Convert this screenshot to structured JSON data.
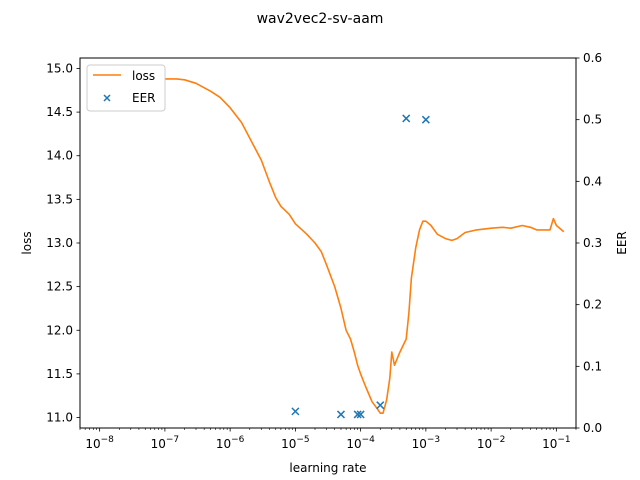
{
  "chart_data": {
    "type": "line",
    "title": "wav2vec2-sv-aam",
    "xlabel": "learning rate",
    "ylabel": "loss",
    "y2label": "EER",
    "xscale": "log",
    "xlim": [
      5e-09,
      0.2
    ],
    "ylim": [
      10.88,
      15.12
    ],
    "y2lim": [
      0.0,
      0.6
    ],
    "x_ticks": [
      {
        "value": 1e-08,
        "base": "10",
        "exp": "−8"
      },
      {
        "value": 1e-07,
        "base": "10",
        "exp": "−7"
      },
      {
        "value": 1e-06,
        "base": "10",
        "exp": "−6"
      },
      {
        "value": 1e-05,
        "base": "10",
        "exp": "−5"
      },
      {
        "value": 0.0001,
        "base": "10",
        "exp": "−4"
      },
      {
        "value": 0.001,
        "base": "10",
        "exp": "−3"
      },
      {
        "value": 0.01,
        "base": "10",
        "exp": "−2"
      },
      {
        "value": 0.1,
        "base": "10",
        "exp": "−1"
      }
    ],
    "y_ticks": [
      {
        "value": 11.0,
        "label": "11.0"
      },
      {
        "value": 11.5,
        "label": "11.5"
      },
      {
        "value": 12.0,
        "label": "12.0"
      },
      {
        "value": 12.5,
        "label": "12.5"
      },
      {
        "value": 13.0,
        "label": "13.0"
      },
      {
        "value": 13.5,
        "label": "13.5"
      },
      {
        "value": 14.0,
        "label": "14.0"
      },
      {
        "value": 14.5,
        "label": "14.5"
      },
      {
        "value": 15.0,
        "label": "15.0"
      }
    ],
    "y2_ticks": [
      {
        "value": 0.0,
        "label": "0.0"
      },
      {
        "value": 0.1,
        "label": "0.1"
      },
      {
        "value": 0.2,
        "label": "0.2"
      },
      {
        "value": 0.3,
        "label": "0.3"
      },
      {
        "value": 0.4,
        "label": "0.4"
      },
      {
        "value": 0.5,
        "label": "0.5"
      },
      {
        "value": 0.6,
        "label": "0.6"
      }
    ],
    "legend_position": "top-left",
    "series": [
      {
        "name": "loss",
        "kind": "line",
        "axis": "left",
        "color": "#ff7f0e",
        "points": [
          [
            1e-07,
            14.88
          ],
          [
            1.5e-07,
            14.88
          ],
          [
            2e-07,
            14.87
          ],
          [
            3e-07,
            14.83
          ],
          [
            5e-07,
            14.74
          ],
          [
            7e-07,
            14.67
          ],
          [
            1e-06,
            14.55
          ],
          [
            1.5e-06,
            14.38
          ],
          [
            2e-06,
            14.2
          ],
          [
            3e-06,
            13.95
          ],
          [
            4e-06,
            13.7
          ],
          [
            5e-06,
            13.52
          ],
          [
            6e-06,
            13.42
          ],
          [
            8e-06,
            13.33
          ],
          [
            1e-05,
            13.22
          ],
          [
            1.5e-05,
            13.1
          ],
          [
            2e-05,
            13.0
          ],
          [
            2.5e-05,
            12.9
          ],
          [
            3e-05,
            12.75
          ],
          [
            4e-05,
            12.5
          ],
          [
            5e-05,
            12.25
          ],
          [
            6e-05,
            12.0
          ],
          [
            7e-05,
            11.9
          ],
          [
            8e-05,
            11.75
          ],
          [
            9e-05,
            11.6
          ],
          [
            0.0001,
            11.5
          ],
          [
            0.00012,
            11.35
          ],
          [
            0.00015,
            11.18
          ],
          [
            0.00018,
            11.1
          ],
          [
            0.0002,
            11.05
          ],
          [
            0.00022,
            11.05
          ],
          [
            0.00025,
            11.2
          ],
          [
            0.00028,
            11.45
          ],
          [
            0.0003,
            11.75
          ],
          [
            0.00033,
            11.6
          ],
          [
            0.0004,
            11.75
          ],
          [
            0.0005,
            11.9
          ],
          [
            0.00055,
            12.2
          ],
          [
            0.0006,
            12.6
          ],
          [
            0.0007,
            12.95
          ],
          [
            0.0008,
            13.15
          ],
          [
            0.0009,
            13.25
          ],
          [
            0.001,
            13.25
          ],
          [
            0.0012,
            13.2
          ],
          [
            0.0015,
            13.1
          ],
          [
            0.002,
            13.05
          ],
          [
            0.0025,
            13.03
          ],
          [
            0.003,
            13.05
          ],
          [
            0.004,
            13.12
          ],
          [
            0.006,
            13.15
          ],
          [
            0.01,
            13.17
          ],
          [
            0.015,
            13.18
          ],
          [
            0.02,
            13.17
          ],
          [
            0.03,
            13.2
          ],
          [
            0.04,
            13.18
          ],
          [
            0.05,
            13.15
          ],
          [
            0.07,
            13.15
          ],
          [
            0.08,
            13.15
          ],
          [
            0.09,
            13.28
          ],
          [
            0.1,
            13.2
          ],
          [
            0.13,
            13.13
          ]
        ]
      },
      {
        "name": "EER",
        "kind": "scatter",
        "axis": "right",
        "color": "#1f77b4",
        "points": [
          [
            1e-05,
            0.027
          ],
          [
            5e-05,
            0.022
          ],
          [
            9e-05,
            0.022
          ],
          [
            0.0001,
            0.022
          ],
          [
            0.0002,
            0.037
          ],
          [
            0.0005,
            0.502
          ],
          [
            0.001,
            0.5
          ]
        ]
      }
    ]
  }
}
